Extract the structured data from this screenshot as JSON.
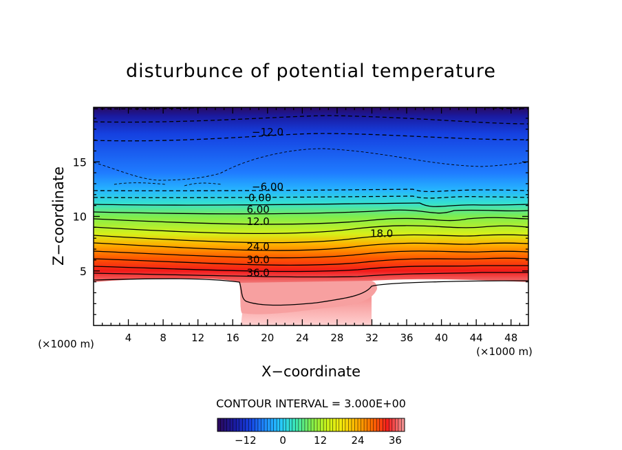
{
  "chart_data": {
    "type": "contour",
    "title": "disturbunce of potential temperature",
    "xlabel": "X−coordinate",
    "ylabel": "Z−coordinate",
    "x_unit_left": "(×1000 m)",
    "x_unit_right": "(×1000 m)",
    "xlim": [
      0,
      50
    ],
    "ylim": [
      0,
      20
    ],
    "x_ticks": [
      4,
      8,
      12,
      16,
      20,
      24,
      28,
      32,
      36,
      40,
      44,
      48
    ],
    "y_ticks": [
      5,
      10,
      15
    ],
    "contour_labels": [
      {
        "text": "−12.0",
        "x": 18.2,
        "z": 17.4
      },
      {
        "text": "−6.00",
        "x": 18.2,
        "z": 12.4
      },
      {
        "text": "0.00",
        "x": 17.8,
        "z": 11.4
      },
      {
        "text": "6.00",
        "x": 17.6,
        "z": 10.3
      },
      {
        "text": "12.0",
        "x": 17.6,
        "z": 9.2
      },
      {
        "text": "18.0",
        "x": 31.8,
        "z": 8.1
      },
      {
        "text": "24.0",
        "x": 17.6,
        "z": 6.9
      },
      {
        "text": "30.0",
        "x": 17.6,
        "z": 5.7
      },
      {
        "text": "36.0",
        "x": 17.6,
        "z": 4.5
      }
    ],
    "contour_interval_text": "CONTOUR INTERVAL = 3.000E+00",
    "colorbar": {
      "range": [
        -21,
        39
      ],
      "ticks": [
        -12,
        0,
        12,
        24,
        36
      ],
      "colors": [
        "#2a0a60",
        "#1a1aa0",
        "#1540e0",
        "#1f8cff",
        "#26c9ff",
        "#3be8b4",
        "#7ded4f",
        "#c8f21a",
        "#f5e80c",
        "#ffb000",
        "#ff6a00",
        "#f51f1f",
        "#f09090"
      ]
    },
    "grid": false
  }
}
